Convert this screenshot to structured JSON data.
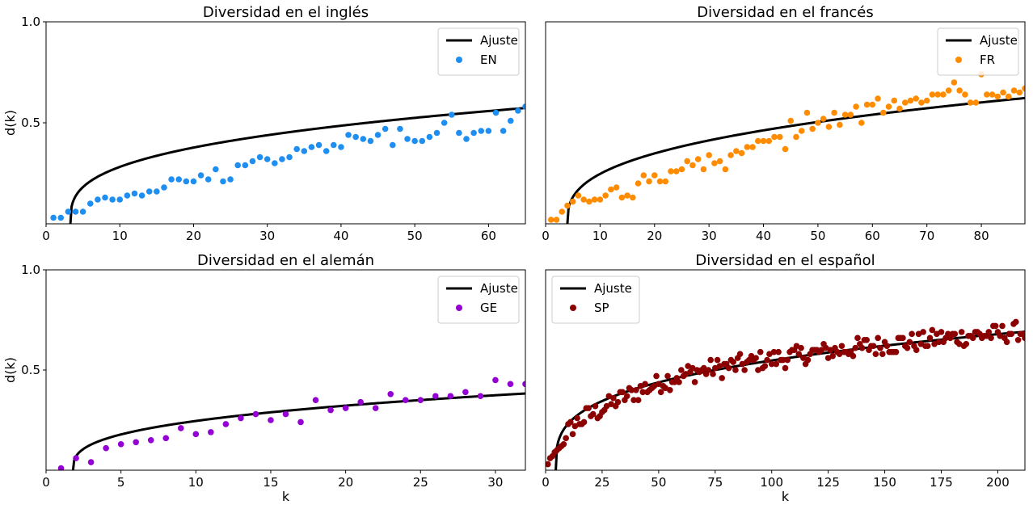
{
  "chart_data": [
    {
      "type": "scatter",
      "title": "Diversidad en el inglés",
      "xlabel": "",
      "ylabel": "d(k)",
      "xlim": [
        0,
        65
      ],
      "ylim": [
        0,
        1.0
      ],
      "xticks": [
        0,
        10,
        20,
        30,
        40,
        50,
        60
      ],
      "yticks": [
        0.5,
        1.0
      ],
      "legend_position": "top-right",
      "fit": {
        "name": "Ajuste",
        "x0": 3.3,
        "a": 0.1533,
        "p": 0.32,
        "xmax": 65
      },
      "series": [
        {
          "name": "EN",
          "color": "#1f8ef1",
          "x": [
            1,
            2,
            3,
            4,
            5,
            6,
            7,
            8,
            9,
            10,
            11,
            12,
            13,
            14,
            15,
            16,
            17,
            18,
            19,
            20,
            21,
            22,
            23,
            24,
            25,
            26,
            27,
            28,
            29,
            30,
            31,
            32,
            33,
            34,
            35,
            36,
            37,
            38,
            39,
            40,
            41,
            42,
            43,
            44,
            45,
            46,
            47,
            48,
            49,
            50,
            51,
            52,
            53,
            54,
            55,
            56,
            57,
            58,
            59,
            60,
            61,
            62,
            63,
            64,
            65
          ],
          "y": [
            0.03,
            0.03,
            0.06,
            0.06,
            0.06,
            0.1,
            0.12,
            0.13,
            0.12,
            0.12,
            0.14,
            0.15,
            0.14,
            0.16,
            0.16,
            0.18,
            0.22,
            0.22,
            0.21,
            0.21,
            0.24,
            0.22,
            0.27,
            0.21,
            0.22,
            0.29,
            0.29,
            0.31,
            0.33,
            0.32,
            0.3,
            0.32,
            0.33,
            0.37,
            0.36,
            0.38,
            0.39,
            0.36,
            0.39,
            0.38,
            0.44,
            0.43,
            0.42,
            0.41,
            0.44,
            0.47,
            0.39,
            0.47,
            0.42,
            0.41,
            0.41,
            0.43,
            0.45,
            0.5,
            0.54,
            0.45,
            0.42,
            0.45,
            0.46,
            0.46,
            0.55,
            0.46,
            0.51,
            0.56,
            0.58
          ]
        }
      ]
    },
    {
      "type": "scatter",
      "title": "Diversidad en el francés",
      "xlabel": "",
      "ylabel": "",
      "xlim": [
        0,
        88
      ],
      "ylim": [
        0,
        1.0
      ],
      "xticks": [
        0,
        10,
        20,
        30,
        40,
        50,
        60,
        70,
        80
      ],
      "yticks": [],
      "legend_position": "top-right",
      "fit": {
        "name": "Ajuste",
        "x0": 4.0,
        "a": 0.132,
        "p": 0.35,
        "xmax": 88
      },
      "series": [
        {
          "name": "FR",
          "color": "#ff8c00",
          "x": [
            1,
            2,
            3,
            4,
            5,
            6,
            7,
            8,
            9,
            10,
            11,
            12,
            13,
            14,
            15,
            16,
            17,
            18,
            19,
            20,
            21,
            22,
            23,
            24,
            25,
            26,
            27,
            28,
            29,
            30,
            31,
            32,
            33,
            34,
            35,
            36,
            37,
            38,
            39,
            40,
            41,
            42,
            43,
            44,
            45,
            46,
            47,
            48,
            49,
            50,
            51,
            52,
            53,
            54,
            55,
            56,
            57,
            58,
            59,
            60,
            61,
            62,
            63,
            64,
            65,
            66,
            67,
            68,
            69,
            70,
            71,
            72,
            73,
            74,
            75,
            76,
            77,
            78,
            79,
            80,
            81,
            82,
            83,
            84,
            85,
            86,
            87,
            88
          ],
          "y": [
            0.02,
            0.02,
            0.06,
            0.09,
            0.11,
            0.14,
            0.12,
            0.11,
            0.12,
            0.12,
            0.14,
            0.17,
            0.18,
            0.13,
            0.14,
            0.13,
            0.2,
            0.24,
            0.21,
            0.24,
            0.21,
            0.21,
            0.26,
            0.26,
            0.27,
            0.31,
            0.29,
            0.32,
            0.27,
            0.34,
            0.3,
            0.31,
            0.27,
            0.34,
            0.36,
            0.35,
            0.38,
            0.38,
            0.41,
            0.41,
            0.41,
            0.43,
            0.43,
            0.37,
            0.51,
            0.43,
            0.46,
            0.55,
            0.47,
            0.5,
            0.52,
            0.48,
            0.55,
            0.49,
            0.54,
            0.54,
            0.58,
            0.5,
            0.59,
            0.59,
            0.62,
            0.55,
            0.58,
            0.61,
            0.57,
            0.6,
            0.61,
            0.62,
            0.6,
            0.61,
            0.64,
            0.64,
            0.64,
            0.66,
            0.7,
            0.66,
            0.64,
            0.6,
            0.6,
            0.74,
            0.64,
            0.64,
            0.63,
            0.65,
            0.63,
            0.66,
            0.65,
            0.67
          ]
        }
      ]
    },
    {
      "type": "scatter",
      "title": "Diversidad en el alemán",
      "xlabel": "k",
      "ylabel": "d(k)",
      "xlim": [
        0,
        32
      ],
      "ylim": [
        0,
        1.0
      ],
      "xticks": [
        0,
        5,
        10,
        15,
        20,
        25,
        30
      ],
      "yticks": [
        0.5,
        1.0
      ],
      "legend_position": "top-right",
      "fit": {
        "name": "Ajuste",
        "x0": 1.8,
        "a": 0.1202,
        "p": 0.34,
        "xmax": 32
      },
      "series": [
        {
          "name": "GE",
          "color": "#9400d3",
          "x": [
            1,
            2,
            3,
            4,
            5,
            6,
            7,
            8,
            9,
            10,
            11,
            12,
            13,
            14,
            15,
            16,
            17,
            18,
            19,
            20,
            21,
            22,
            23,
            24,
            25,
            26,
            27,
            28,
            29,
            30,
            31,
            32
          ],
          "y": [
            0.01,
            0.06,
            0.04,
            0.11,
            0.13,
            0.14,
            0.15,
            0.16,
            0.21,
            0.18,
            0.19,
            0.23,
            0.26,
            0.28,
            0.25,
            0.28,
            0.24,
            0.35,
            0.3,
            0.31,
            0.34,
            0.31,
            0.38,
            0.35,
            0.35,
            0.37,
            0.37,
            0.39,
            0.37,
            0.45,
            0.43,
            0.43
          ]
        }
      ]
    },
    {
      "type": "scatter",
      "title": "Diversidad en el español",
      "xlabel": "k",
      "ylabel": "",
      "xlim": [
        0,
        212
      ],
      "ylim": [
        0,
        1.0
      ],
      "xticks": [
        0,
        25,
        50,
        75,
        100,
        125,
        150,
        175,
        200
      ],
      "yticks": [],
      "legend_position": "top-left",
      "fit": {
        "name": "Ajuste",
        "x0": 4.5,
        "a": 0.1395,
        "p": 0.3,
        "xmax": 212
      },
      "series": [
        {
          "name": "SP",
          "color": "#8b0000",
          "x": [],
          "y": []
        }
      ]
    }
  ]
}
